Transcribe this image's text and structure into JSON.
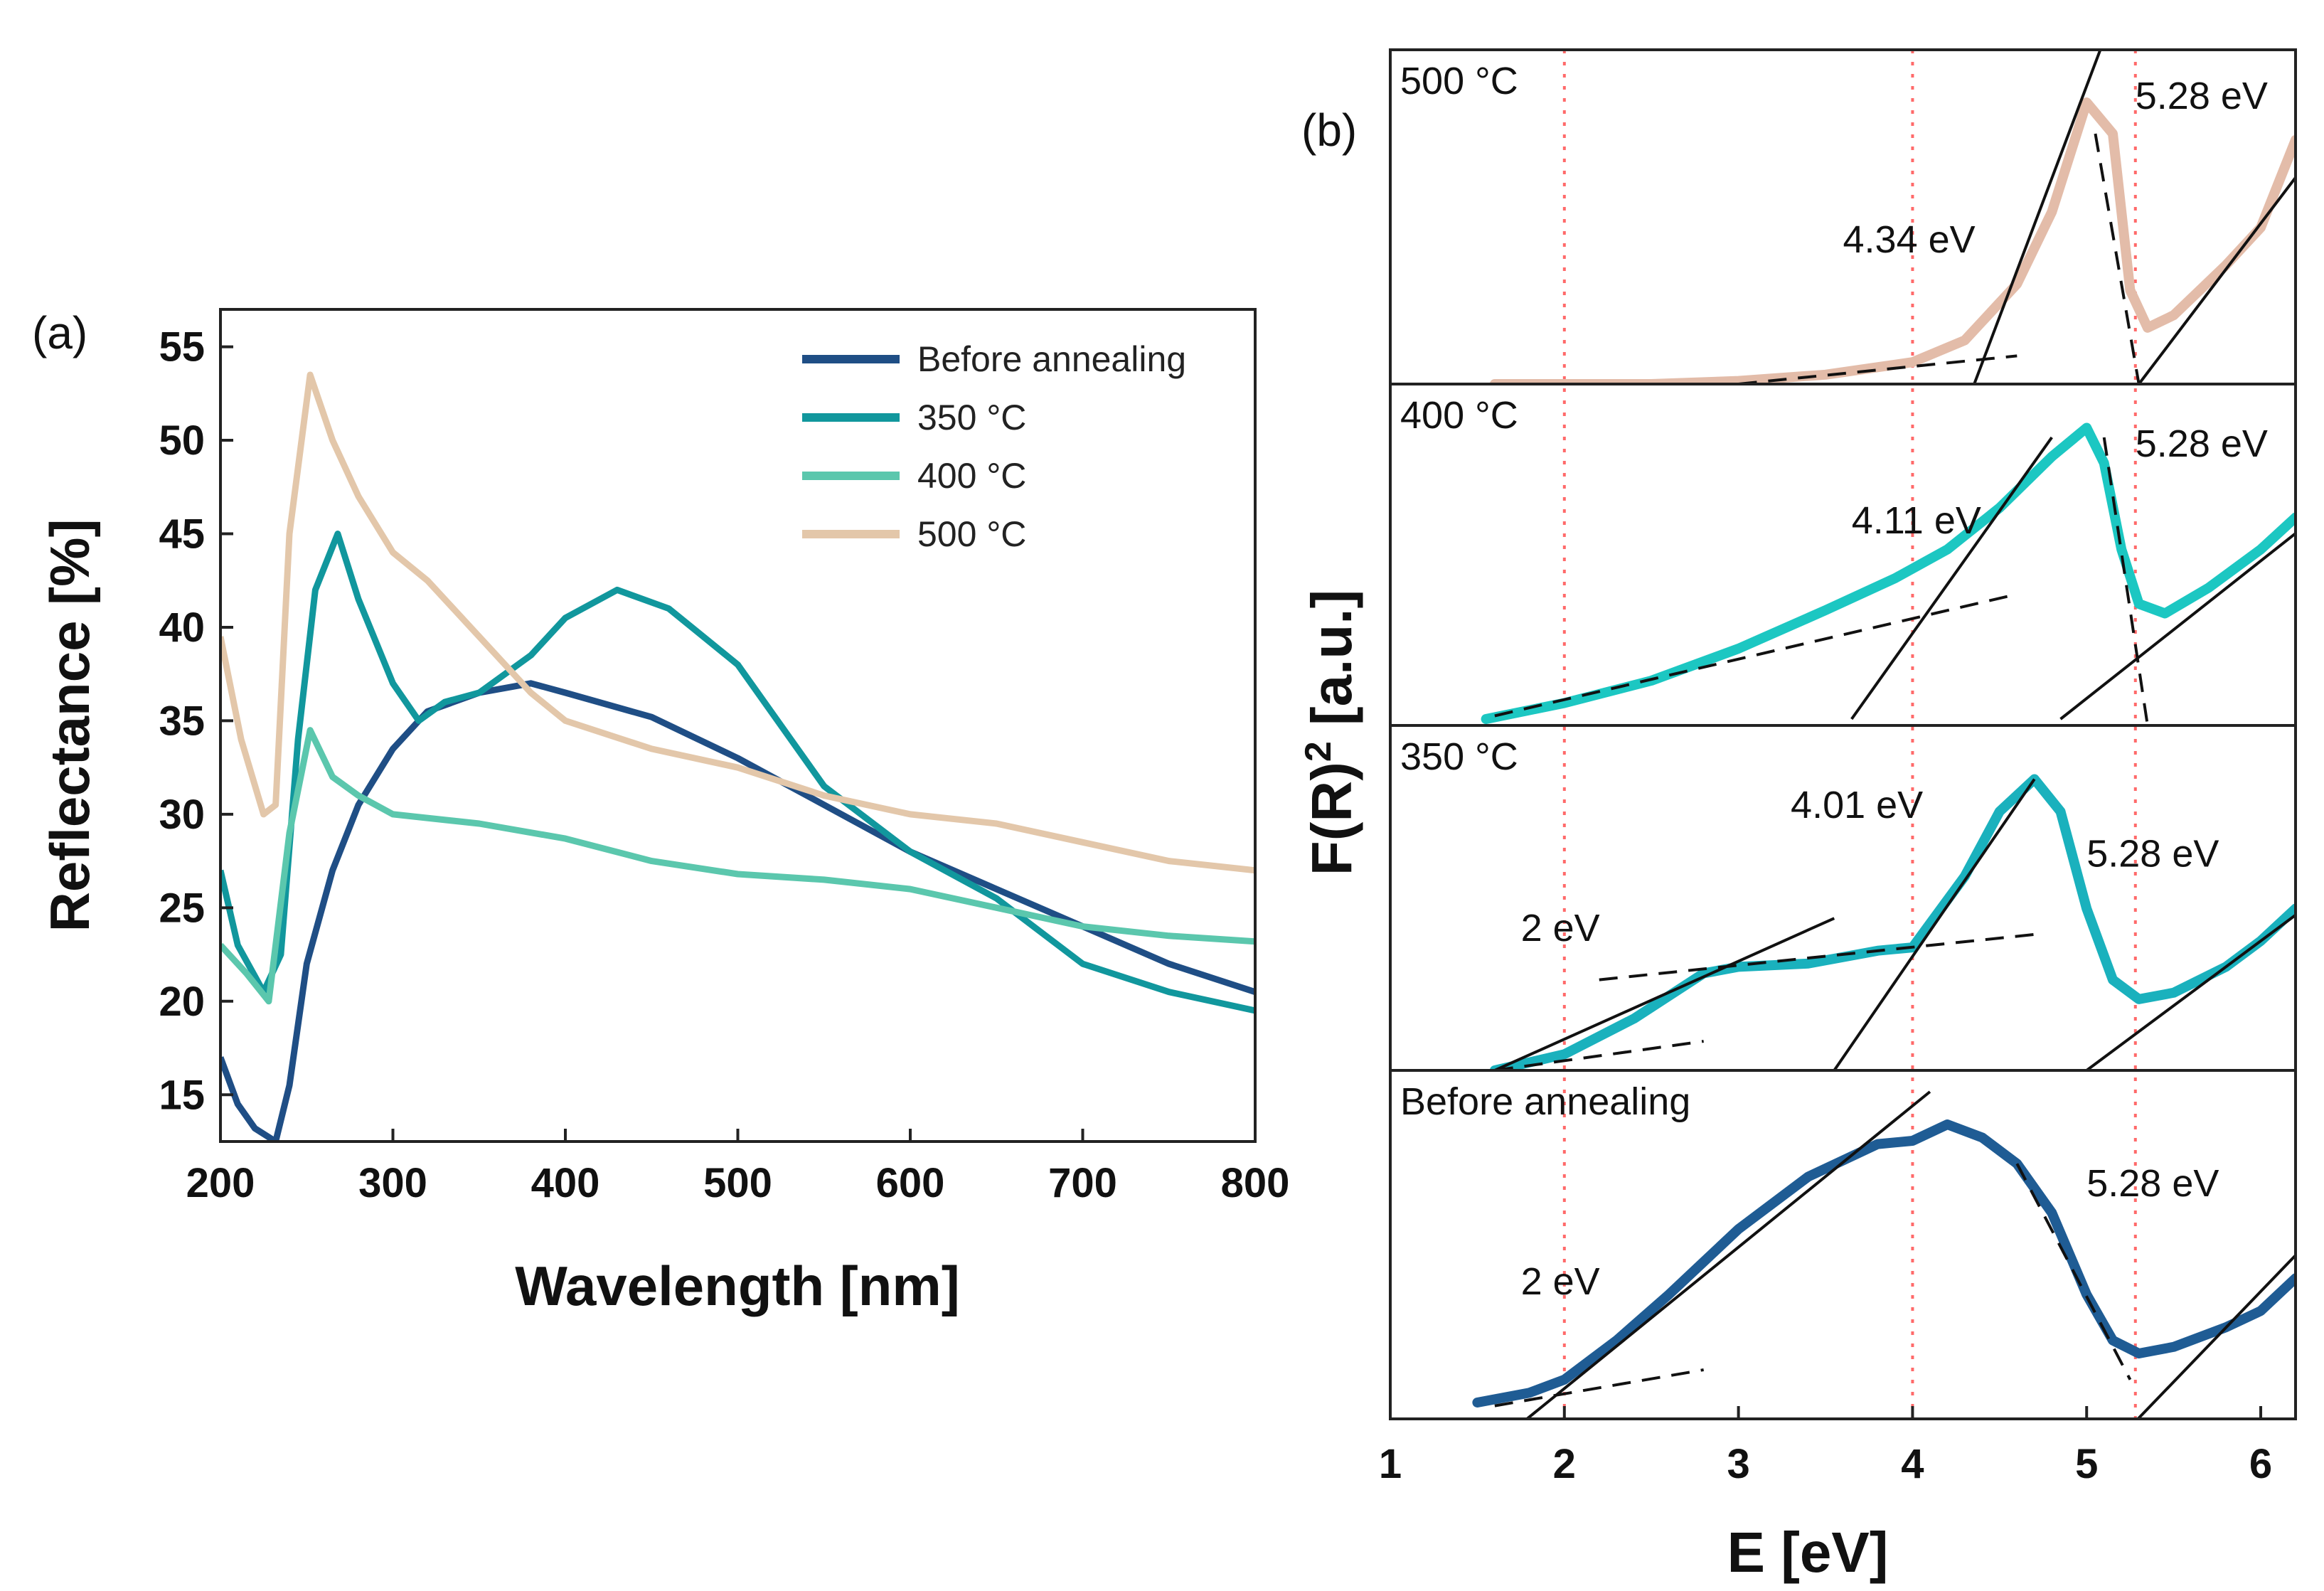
{
  "chart_data": [
    {
      "panel": "(a)",
      "type": "line",
      "xlabel": "Wavelength [nm]",
      "ylabel": "Reflectance  [%]",
      "xlim": [
        200,
        800
      ],
      "ylim": [
        12.5,
        57
      ],
      "xticks": [
        "200",
        "300",
        "400",
        "500",
        "600",
        "700",
        "800"
      ],
      "yticks": [
        "15",
        "20",
        "25",
        "30",
        "35",
        "40",
        "45",
        "50",
        "55"
      ],
      "legend_position": "top-right",
      "series": [
        {
          "name": "Before annealing",
          "color": "#1f4e85",
          "x": [
            200,
            210,
            220,
            232,
            240,
            250,
            265,
            280,
            300,
            320,
            350,
            380,
            400,
            450,
            500,
            550,
            600,
            650,
            700,
            750,
            800
          ],
          "y": [
            17,
            14.5,
            13.2,
            12.5,
            15.5,
            22,
            27,
            30.5,
            33.5,
            35.5,
            36.5,
            37,
            36.5,
            35.2,
            33,
            30.5,
            28,
            26,
            24,
            22,
            20.5
          ]
        },
        {
          "name": "350 °C",
          "color": "#11979d",
          "x": [
            200,
            210,
            225,
            235,
            245,
            255,
            268,
            280,
            300,
            315,
            330,
            350,
            380,
            400,
            430,
            460,
            500,
            550,
            600,
            650,
            700,
            750,
            800
          ],
          "y": [
            27,
            23,
            20.5,
            22.5,
            34,
            42,
            45,
            41.5,
            37,
            35,
            36,
            36.5,
            38.5,
            40.5,
            42,
            41,
            38,
            31.5,
            28,
            25.5,
            22,
            20.5,
            19.5
          ]
        },
        {
          "name": "400 °C",
          "color": "#5bc7ad",
          "x": [
            200,
            215,
            228,
            240,
            252,
            265,
            280,
            300,
            350,
            400,
            450,
            500,
            550,
            600,
            650,
            700,
            750,
            800
          ],
          "y": [
            23,
            21.5,
            20,
            29,
            34.5,
            32,
            31,
            30,
            29.5,
            28.7,
            27.5,
            26.8,
            26.5,
            26,
            25,
            24,
            23.5,
            23.2
          ]
        },
        {
          "name": "500 °C",
          "color": "#e3c7aa",
          "x": [
            200,
            212,
            225,
            232,
            240,
            252,
            265,
            280,
            300,
            320,
            350,
            380,
            400,
            450,
            500,
            550,
            600,
            650,
            700,
            750,
            800
          ],
          "y": [
            39.5,
            34,
            30,
            30.5,
            45,
            53.5,
            50,
            47,
            44,
            42.5,
            39.5,
            36.5,
            35,
            33.5,
            32.5,
            31,
            30,
            29.5,
            28.5,
            27.5,
            27
          ]
        }
      ]
    },
    {
      "panel": "(b)",
      "type": "line",
      "xlabel": "E  [eV]",
      "ylabel": "F(R)",
      "ylabel_sup": "2",
      "ylabel_suffix": " [a.u.]",
      "xlim": [
        1,
        6.2
      ],
      "xticks": [
        "1",
        "2",
        "3",
        "4",
        "5",
        "6"
      ],
      "reference_lines_eV": [
        2,
        4,
        5.28
      ],
      "subpanels": [
        {
          "label": "500 °C",
          "color": "#e3bca9",
          "x": [
            1.6,
            2.5,
            3.0,
            3.5,
            4.0,
            4.3,
            4.6,
            4.8,
            5.0,
            5.15,
            5.25,
            5.35,
            5.5,
            5.8,
            6.0,
            6.2
          ],
          "y": [
            0.0,
            0.0,
            0.01,
            0.03,
            0.07,
            0.14,
            0.32,
            0.55,
            0.9,
            0.8,
            0.3,
            0.18,
            0.22,
            0.38,
            0.5,
            0.78
          ],
          "tangents": [
            {
              "kind": "solid",
              "x": [
                4.3,
                5.1
              ],
              "y": [
                -0.08,
                1.1
              ]
            },
            {
              "kind": "dashed",
              "x": [
                3.0,
                4.6
              ],
              "y": [
                0.0,
                0.09
              ]
            },
            {
              "kind": "dashed",
              "x": [
                5.05,
                5.3
              ],
              "y": [
                0.8,
                0.0
              ]
            },
            {
              "kind": "solid",
              "x": [
                5.3,
                6.2
              ],
              "y": [
                0.0,
                0.66
              ]
            }
          ],
          "annotations": [
            {
              "text": "4.34 eV",
              "x": 3.6,
              "y": 0.42
            },
            {
              "text": "5.28 eV",
              "x": 5.28,
              "y": 0.88
            }
          ]
        },
        {
          "label": "400 °C",
          "color": "#1cc7c2",
          "x": [
            1.55,
            2.0,
            2.5,
            3.0,
            3.5,
            3.9,
            4.2,
            4.5,
            4.8,
            5.0,
            5.1,
            5.2,
            5.3,
            5.45,
            5.7,
            6.0,
            6.2
          ],
          "y": [
            0.02,
            0.07,
            0.14,
            0.24,
            0.36,
            0.46,
            0.55,
            0.68,
            0.84,
            0.93,
            0.82,
            0.55,
            0.38,
            0.35,
            0.43,
            0.55,
            0.65
          ],
          "tangents": [
            {
              "kind": "dashed",
              "x": [
                1.6,
                4.6
              ],
              "y": [
                0.03,
                0.41
              ]
            },
            {
              "kind": "solid",
              "x": [
                3.65,
                4.8
              ],
              "y": [
                0.02,
                0.9
              ]
            },
            {
              "kind": "dashed",
              "x": [
                5.1,
                5.35
              ],
              "y": [
                0.9,
                0.0
              ]
            },
            {
              "kind": "solid",
              "x": [
                4.85,
                6.2
              ],
              "y": [
                0.02,
                0.6
              ]
            }
          ],
          "annotations": [
            {
              "text": "4.11 eV",
              "x": 3.65,
              "y": 0.6
            },
            {
              "text": "5.28 eV",
              "x": 5.28,
              "y": 0.84
            }
          ]
        },
        {
          "label": "350 °C",
          "color": "#1ab1bd",
          "x": [
            1.6,
            2.0,
            2.4,
            2.8,
            3.0,
            3.4,
            3.8,
            4.0,
            4.3,
            4.5,
            4.7,
            4.85,
            5.0,
            5.15,
            5.3,
            5.5,
            5.8,
            6.0,
            6.2
          ],
          "y": [
            0.0,
            0.05,
            0.16,
            0.3,
            0.32,
            0.33,
            0.37,
            0.38,
            0.6,
            0.8,
            0.9,
            0.8,
            0.5,
            0.28,
            0.22,
            0.24,
            0.32,
            0.4,
            0.5
          ],
          "tangents": [
            {
              "kind": "solid",
              "x": [
                1.6,
                3.55
              ],
              "y": [
                0.0,
                0.47
              ]
            },
            {
              "kind": "dashed",
              "x": [
                1.6,
                2.8
              ],
              "y": [
                0.0,
                0.09
              ]
            },
            {
              "kind": "dashed",
              "x": [
                2.2,
                4.7
              ],
              "y": [
                0.28,
                0.42
              ]
            },
            {
              "kind": "solid",
              "x": [
                3.55,
                4.7
              ],
              "y": [
                0.0,
                0.9
              ]
            },
            {
              "kind": "solid",
              "x": [
                5.0,
                6.2
              ],
              "y": [
                0.0,
                0.48
              ]
            }
          ],
          "annotations": [
            {
              "text": "2 eV",
              "x": 1.75,
              "y": 0.4
            },
            {
              "text": "4.01 eV",
              "x": 3.3,
              "y": 0.78
            },
            {
              "text": "5.28 eV",
              "x": 5.0,
              "y": 0.63
            }
          ]
        },
        {
          "label": "Before annealing",
          "color": "#1f5c94",
          "x": [
            1.5,
            1.8,
            2.0,
            2.3,
            2.6,
            3.0,
            3.4,
            3.8,
            4.0,
            4.2,
            4.4,
            4.6,
            4.8,
            5.0,
            5.15,
            5.3,
            5.5,
            5.8,
            6.0,
            6.2
          ],
          "y": [
            0.05,
            0.08,
            0.12,
            0.24,
            0.38,
            0.58,
            0.74,
            0.84,
            0.85,
            0.9,
            0.86,
            0.78,
            0.63,
            0.38,
            0.24,
            0.2,
            0.22,
            0.28,
            0.33,
            0.43
          ],
          "tangents": [
            {
              "kind": "solid",
              "x": [
                1.6,
                4.1
              ],
              "y": [
                -0.08,
                1.0
              ]
            },
            {
              "kind": "dashed",
              "x": [
                1.6,
                2.8
              ],
              "y": [
                0.04,
                0.15
              ]
            },
            {
              "kind": "dashed",
              "x": [
                4.6,
                5.25
              ],
              "y": [
                0.78,
                0.12
              ]
            },
            {
              "kind": "solid",
              "x": [
                5.15,
                6.2
              ],
              "y": [
                -0.08,
                0.5
              ]
            }
          ],
          "annotations": [
            {
              "text": "2 eV",
              "x": 1.75,
              "y": 0.38
            },
            {
              "text": "5.28 eV",
              "x": 5.0,
              "y": 0.68
            }
          ]
        }
      ]
    }
  ]
}
